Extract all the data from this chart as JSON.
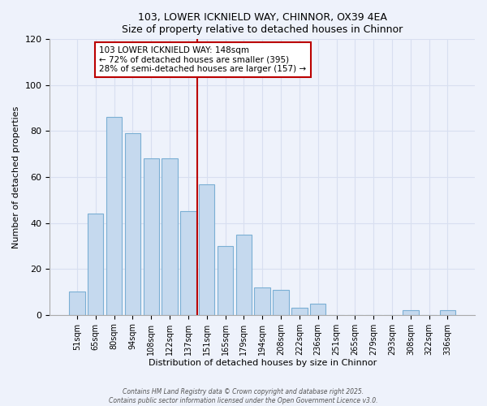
{
  "title": "103, LOWER ICKNIELD WAY, CHINNOR, OX39 4EA",
  "subtitle": "Size of property relative to detached houses in Chinnor",
  "xlabel": "Distribution of detached houses by size in Chinnor",
  "ylabel": "Number of detached properties",
  "bar_color": "#c5d9ee",
  "bar_edge_color": "#7bafd4",
  "background_color": "#eef2fb",
  "grid_color": "#d8dff0",
  "categories": [
    "51sqm",
    "65sqm",
    "80sqm",
    "94sqm",
    "108sqm",
    "122sqm",
    "137sqm",
    "151sqm",
    "165sqm",
    "179sqm",
    "194sqm",
    "208sqm",
    "222sqm",
    "236sqm",
    "251sqm",
    "265sqm",
    "279sqm",
    "293sqm",
    "308sqm",
    "322sqm",
    "336sqm"
  ],
  "values": [
    10,
    44,
    86,
    79,
    68,
    68,
    45,
    57,
    30,
    35,
    12,
    11,
    3,
    5,
    0,
    0,
    0,
    0,
    2,
    0,
    2
  ],
  "ylim": [
    0,
    120
  ],
  "yticks": [
    0,
    20,
    40,
    60,
    80,
    100,
    120
  ],
  "property_line_idx": 7,
  "property_line_label": "103 LOWER ICKNIELD WAY: 148sqm",
  "annotation_line1": "← 72% of detached houses are smaller (395)",
  "annotation_line2": "28% of semi-detached houses are larger (157) →",
  "line_color": "#bb0000",
  "box_edge_color": "#bb0000",
  "footer1": "Contains HM Land Registry data © Crown copyright and database right 2025.",
  "footer2": "Contains public sector information licensed under the Open Government Licence v3.0."
}
